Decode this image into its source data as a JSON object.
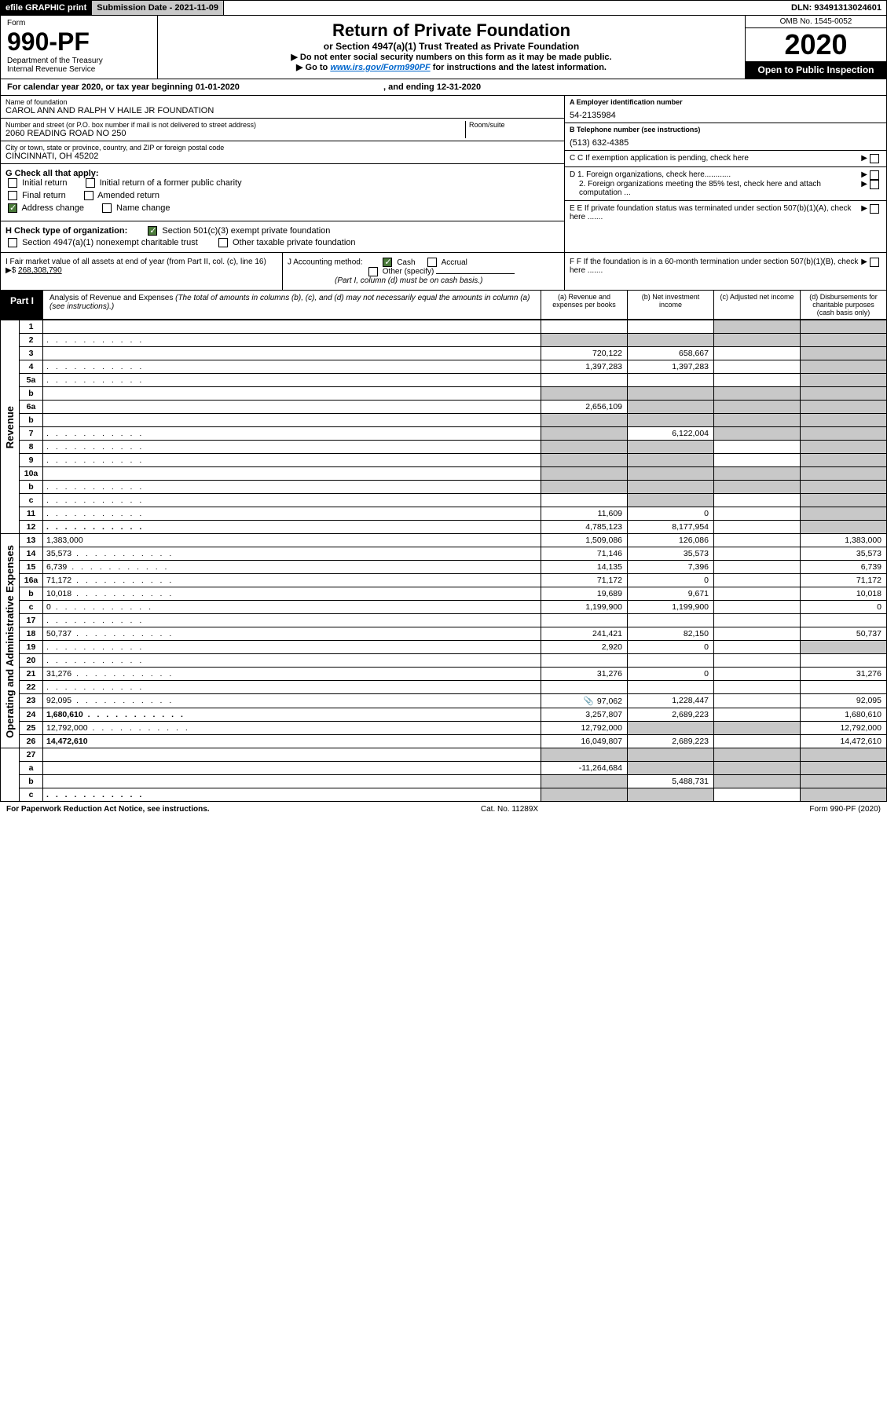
{
  "top": {
    "efile": "efile GRAPHIC print",
    "submission_label": "Submission Date - 2021-11-09",
    "dln": "DLN: 93491313024601"
  },
  "header": {
    "form_word": "Form",
    "form_number": "990-PF",
    "dept1": "Department of the Treasury",
    "dept2": "Internal Revenue Service",
    "title": "Return of Private Foundation",
    "subtitle": "or Section 4947(a)(1) Trust Treated as Private Foundation",
    "instr1": "▶ Do not enter social security numbers on this form as it may be made public.",
    "instr2_prefix": "▶ Go to ",
    "instr2_link": "www.irs.gov/Form990PF",
    "instr2_suffix": " for instructions and the latest information.",
    "omb": "OMB No. 1545-0052",
    "year": "2020",
    "open": "Open to Public Inspection"
  },
  "cal_year": {
    "prefix": "For calendar year 2020, or tax year beginning ",
    "begin": "01-01-2020",
    "mid": " , and ending ",
    "end": "12-31-2020"
  },
  "info": {
    "name_lbl": "Name of foundation",
    "name_val": "CAROL ANN AND RALPH V HAILE JR FOUNDATION",
    "addr_lbl": "Number and street (or P.O. box number if mail is not delivered to street address)",
    "addr_val": "2060 READING ROAD NO 250",
    "room_lbl": "Room/suite",
    "city_lbl": "City or town, state or province, country, and ZIP or foreign postal code",
    "city_val": "CINCINNATI, OH  45202",
    "a_lbl": "A Employer identification number",
    "a_val": "54-2135984",
    "b_lbl": "B Telephone number (see instructions)",
    "b_val": "(513) 632-4385",
    "c_lbl": "C If exemption application is pending, check here",
    "d1_lbl": "D 1. Foreign organizations, check here............",
    "d2_lbl": "2. Foreign organizations meeting the 85% test, check here and attach computation ...",
    "e_lbl": "E  If private foundation status was terminated under section 507(b)(1)(A), check here .......",
    "f_lbl": "F  If the foundation is in a 60-month termination under section 507(b)(1)(B), check here .......",
    "g_lbl": "G Check all that apply:",
    "g_initial": "Initial return",
    "g_initial_former": "Initial return of a former public charity",
    "g_final": "Final return",
    "g_amended": "Amended return",
    "g_address": "Address change",
    "g_name": "Name change",
    "h_lbl": "H Check type of organization:",
    "h_501c3": "Section 501(c)(3) exempt private foundation",
    "h_4947": "Section 4947(a)(1) nonexempt charitable trust",
    "h_other_tax": "Other taxable private foundation",
    "i_lbl": "I Fair market value of all assets at end of year (from Part II, col. (c), line 16) ▶$ ",
    "i_val": "268,308,790",
    "j_lbl": "J Accounting method:",
    "j_cash": "Cash",
    "j_accrual": "Accrual",
    "j_other": "Other (specify)",
    "j_note": "(Part I, column (d) must be on cash basis.)"
  },
  "part1": {
    "label": "Part I",
    "title": "Analysis of Revenue and Expenses",
    "note": " (The total of amounts in columns (b), (c), and (d) may not necessarily equal the amounts in column (a) (see instructions).)",
    "col_a": "(a)   Revenue and expenses per books",
    "col_b": "(b)  Net investment income",
    "col_c": "(c)  Adjusted net income",
    "col_d": "(d)  Disbursements for charitable purposes (cash basis only)"
  },
  "side_labels": {
    "revenue": "Revenue",
    "expenses": "Operating and Administrative Expenses"
  },
  "rows": [
    {
      "n": "1",
      "d": "",
      "a": "",
      "b": "",
      "c": "",
      "g": {
        "c": true,
        "d": true
      }
    },
    {
      "n": "2",
      "d": "",
      "a": "",
      "b": "",
      "c": "",
      "g": {
        "a": true,
        "b": true,
        "c": true,
        "d": true
      },
      "dots": true
    },
    {
      "n": "3",
      "d": "",
      "a": "720,122",
      "b": "658,667",
      "c": "",
      "g": {
        "d": true
      }
    },
    {
      "n": "4",
      "d": "",
      "a": "1,397,283",
      "b": "1,397,283",
      "c": "",
      "g": {
        "d": true
      },
      "dots": true
    },
    {
      "n": "5a",
      "d": "",
      "a": "",
      "b": "",
      "c": "",
      "g": {
        "d": true
      },
      "dots": true
    },
    {
      "n": "b",
      "d": "",
      "a": "",
      "b": "",
      "c": "",
      "g": {
        "a": true,
        "b": true,
        "c": true,
        "d": true
      }
    },
    {
      "n": "6a",
      "d": "",
      "a": "2,656,109",
      "b": "",
      "c": "",
      "g": {
        "b": true,
        "c": true,
        "d": true
      }
    },
    {
      "n": "b",
      "d": "",
      "a": "",
      "b": "",
      "c": "",
      "g": {
        "a": true,
        "b": true,
        "c": true,
        "d": true
      }
    },
    {
      "n": "7",
      "d": "",
      "a": "",
      "b": "6,122,004",
      "c": "",
      "g": {
        "a": true,
        "c": true,
        "d": true
      },
      "dots": true
    },
    {
      "n": "8",
      "d": "",
      "a": "",
      "b": "",
      "c": "",
      "g": {
        "a": true,
        "b": true,
        "d": true
      },
      "dots": true
    },
    {
      "n": "9",
      "d": "",
      "a": "",
      "b": "",
      "c": "",
      "g": {
        "a": true,
        "b": true,
        "d": true
      },
      "dots": true
    },
    {
      "n": "10a",
      "d": "",
      "a": "",
      "b": "",
      "c": "",
      "g": {
        "a": true,
        "b": true,
        "c": true,
        "d": true
      }
    },
    {
      "n": "b",
      "d": "",
      "a": "",
      "b": "",
      "c": "",
      "g": {
        "a": true,
        "b": true,
        "c": true,
        "d": true
      },
      "dots": true
    },
    {
      "n": "c",
      "d": "",
      "a": "",
      "b": "",
      "c": "",
      "g": {
        "b": true,
        "d": true
      },
      "dots": true
    },
    {
      "n": "11",
      "d": "",
      "a": "11,609",
      "b": "0",
      "c": "",
      "g": {
        "d": true
      },
      "dots": true
    },
    {
      "n": "12",
      "d": "",
      "a": "4,785,123",
      "b": "8,177,954",
      "c": "",
      "g": {
        "d": true
      },
      "bold": true,
      "dots": true
    }
  ],
  "exp_rows": [
    {
      "n": "13",
      "d": "1,383,000",
      "a": "1,509,086",
      "b": "126,086",
      "c": ""
    },
    {
      "n": "14",
      "d": "35,573",
      "a": "71,146",
      "b": "35,573",
      "c": "",
      "dots": true
    },
    {
      "n": "15",
      "d": "6,739",
      "a": "14,135",
      "b": "7,396",
      "c": "",
      "dots": true
    },
    {
      "n": "16a",
      "d": "71,172",
      "a": "71,172",
      "b": "0",
      "c": "",
      "dots": true
    },
    {
      "n": "b",
      "d": "10,018",
      "a": "19,689",
      "b": "9,671",
      "c": "",
      "dots": true
    },
    {
      "n": "c",
      "d": "0",
      "a": "1,199,900",
      "b": "1,199,900",
      "c": "",
      "dots": true
    },
    {
      "n": "17",
      "d": "",
      "a": "",
      "b": "",
      "c": "",
      "dots": true
    },
    {
      "n": "18",
      "d": "50,737",
      "a": "241,421",
      "b": "82,150",
      "c": "",
      "dots": true
    },
    {
      "n": "19",
      "d": "",
      "a": "2,920",
      "b": "0",
      "c": "",
      "g": {
        "d": true
      },
      "dots": true
    },
    {
      "n": "20",
      "d": "",
      "a": "",
      "b": "",
      "c": "",
      "dots": true
    },
    {
      "n": "21",
      "d": "31,276",
      "a": "31,276",
      "b": "0",
      "c": "",
      "dots": true
    },
    {
      "n": "22",
      "d": "",
      "a": "",
      "b": "",
      "c": "",
      "dots": true
    },
    {
      "n": "23",
      "d": "92,095",
      "a": "97,062",
      "b": "1,228,447",
      "c": "",
      "icon": true,
      "dots": true
    },
    {
      "n": "24",
      "d": "1,680,610",
      "a": "3,257,807",
      "b": "2,689,223",
      "c": "",
      "bold": true,
      "dots": true
    },
    {
      "n": "25",
      "d": "12,792,000",
      "a": "12,792,000",
      "b": "",
      "c": "",
      "g": {
        "b": true,
        "c": true
      },
      "dots": true
    },
    {
      "n": "26",
      "d": "14,472,610",
      "a": "16,049,807",
      "b": "2,689,223",
      "c": "",
      "bold": true
    }
  ],
  "bottom_rows": [
    {
      "n": "27",
      "d": "",
      "a": "",
      "b": "",
      "c": "",
      "g": {
        "a": true,
        "b": true,
        "c": true,
        "d": true
      }
    },
    {
      "n": "a",
      "d": "",
      "a": "-11,264,684",
      "b": "",
      "c": "",
      "g": {
        "b": true,
        "c": true,
        "d": true
      },
      "bold": true
    },
    {
      "n": "b",
      "d": "",
      "a": "",
      "b": "5,488,731",
      "c": "",
      "g": {
        "a": true,
        "c": true,
        "d": true
      },
      "bold": true
    },
    {
      "n": "c",
      "d": "",
      "a": "",
      "b": "",
      "c": "",
      "g": {
        "a": true,
        "b": true,
        "d": true
      },
      "bold": true,
      "dots": true
    }
  ],
  "footer": {
    "left": "For Paperwork Reduction Act Notice, see instructions.",
    "mid": "Cat. No. 11289X",
    "right": "Form 990-PF (2020)"
  }
}
